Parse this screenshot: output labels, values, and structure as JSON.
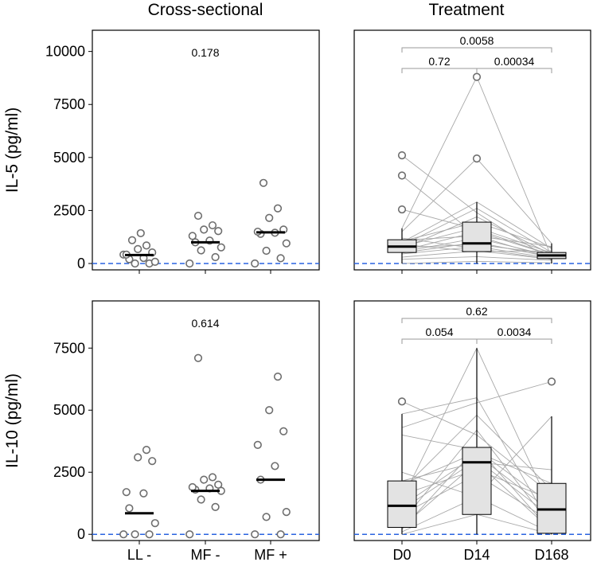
{
  "chart_data": [
    {
      "type": "scatter",
      "panel": "il5-cross",
      "row": 0,
      "col": 0,
      "ylabel": "IL-5 (pg/ml)",
      "ylim": [
        -300,
        11000
      ],
      "yticks": [
        0,
        2500,
        5000,
        7500,
        10000
      ],
      "categories": [
        "LL -",
        "MF -",
        "MF +"
      ],
      "points": [
        [
          420,
          0,
          0,
          80,
          200,
          260,
          420,
          520,
          680,
          850,
          1100,
          1430
        ],
        [
          0,
          300,
          620,
          760,
          1000,
          1080,
          1300,
          1530,
          1600,
          1800,
          2250
        ],
        [
          0,
          250,
          600,
          950,
          1400,
          1450,
          1500,
          1600,
          2150,
          2600,
          3800
        ]
      ],
      "medians": [
        400,
        1000,
        1470
      ],
      "pvalue": "0.178",
      "ref": 0
    },
    {
      "type": "box",
      "panel": "il5-treat",
      "row": 0,
      "col": 1,
      "ylim": [
        -300,
        11000
      ],
      "categories": [
        "D0",
        "D14",
        "D168"
      ],
      "boxes": [
        {
          "lo": 0,
          "q1": 520,
          "med": 800,
          "q3": 1120,
          "hi": 1660,
          "outliers": [
            2550,
            4150,
            5100
          ]
        },
        {
          "lo": 0,
          "q1": 560,
          "med": 950,
          "q3": 1950,
          "hi": 2900,
          "outliers": [
            4950,
            8800
          ]
        },
        {
          "lo": 0,
          "q1": 230,
          "med": 380,
          "q3": 520,
          "hi": 950,
          "outliers": []
        }
      ],
      "pairs": [
        [
          0,
          100,
          30
        ],
        [
          200,
          320,
          150
        ],
        [
          300,
          600,
          200
        ],
        [
          450,
          800,
          250
        ],
        [
          500,
          1000,
          300
        ],
        [
          550,
          1200,
          350
        ],
        [
          600,
          1500,
          400
        ],
        [
          700,
          2200,
          420
        ],
        [
          750,
          900,
          450
        ],
        [
          800,
          1700,
          500
        ],
        [
          850,
          2600,
          520
        ],
        [
          900,
          560,
          600
        ],
        [
          1000,
          2900,
          700
        ],
        [
          1050,
          1950,
          750
        ],
        [
          1100,
          1300,
          800
        ],
        [
          1200,
          700,
          200
        ],
        [
          1500,
          4950,
          950
        ],
        [
          1660,
          8800,
          300
        ],
        [
          2550,
          1600,
          400
        ],
        [
          4150,
          1300,
          250
        ],
        [
          5100,
          2400,
          150
        ]
      ],
      "comparisons": [
        {
          "from": 0,
          "to": 1,
          "label": "0.72",
          "level": 0
        },
        {
          "from": 1,
          "to": 2,
          "label": "0.00034",
          "level": 0
        },
        {
          "from": 0,
          "to": 2,
          "label": "0.0058",
          "level": 1
        }
      ],
      "ref": 0
    },
    {
      "type": "scatter",
      "panel": "il10-cross",
      "row": 1,
      "col": 0,
      "ylabel": "IL-10 (pg/ml)",
      "ylim": [
        -250,
        9400
      ],
      "yticks": [
        0,
        2500,
        5000,
        7500
      ],
      "categories": [
        "LL -",
        "MF -",
        "MF +"
      ],
      "points": [
        [
          0,
          0,
          0,
          450,
          1050,
          1650,
          1700,
          2950,
          3100,
          3400
        ],
        [
          0,
          1100,
          1400,
          1750,
          1800,
          1850,
          1900,
          2000,
          2200,
          2300,
          7100
        ],
        [
          0,
          0,
          700,
          900,
          2200,
          2750,
          3600,
          4150,
          5000,
          6350
        ]
      ],
      "medians": [
        850,
        1750,
        2200
      ],
      "pvalue": "0.614",
      "ref": 0
    },
    {
      "type": "box",
      "panel": "il10-treat",
      "row": 1,
      "col": 1,
      "ylim": [
        -250,
        9400
      ],
      "categories": [
        "D0",
        "D14",
        "D168"
      ],
      "boxes": [
        {
          "lo": 0,
          "q1": 280,
          "med": 1150,
          "q3": 2150,
          "hi": 4850,
          "outliers": [
            5350
          ]
        },
        {
          "lo": 0,
          "q1": 800,
          "med": 2900,
          "q3": 3500,
          "hi": 7500,
          "outliers": []
        },
        {
          "lo": 0,
          "q1": 40,
          "med": 1000,
          "q3": 2050,
          "hi": 4750,
          "outliers": [
            6150
          ]
        }
      ],
      "pairs": [
        [
          0,
          800,
          0
        ],
        [
          100,
          1500,
          50
        ],
        [
          200,
          3500,
          100
        ],
        [
          300,
          2900,
          150
        ],
        [
          500,
          4200,
          300
        ],
        [
          800,
          2400,
          500
        ],
        [
          1000,
          3000,
          700
        ],
        [
          1150,
          3200,
          900
        ],
        [
          1400,
          7500,
          1000
        ],
        [
          1600,
          2600,
          1400
        ],
        [
          1800,
          4800,
          1800
        ],
        [
          2000,
          3300,
          2050
        ],
        [
          2150,
          2900,
          2600
        ],
        [
          2500,
          1500,
          4750
        ],
        [
          4000,
          3400,
          1200
        ],
        [
          4300,
          5300,
          6150
        ],
        [
          4850,
          5500,
          300
        ],
        [
          5350,
          4000,
          1600
        ]
      ],
      "comparisons": [
        {
          "from": 0,
          "to": 1,
          "label": "0.054",
          "level": 0
        },
        {
          "from": 1,
          "to": 2,
          "label": "0.0034",
          "level": 0
        },
        {
          "from": 0,
          "to": 2,
          "label": "0.62",
          "level": 1
        }
      ],
      "ref": 0
    }
  ],
  "columns": {
    "left_title": "Cross-sectional",
    "right_title": "Treatment"
  },
  "colors": {
    "reference_line": "#2a63e0",
    "box_fill": "#e3e3e3",
    "point_stroke": "#6e6e6e",
    "pair_line": "#a8a8a8"
  }
}
